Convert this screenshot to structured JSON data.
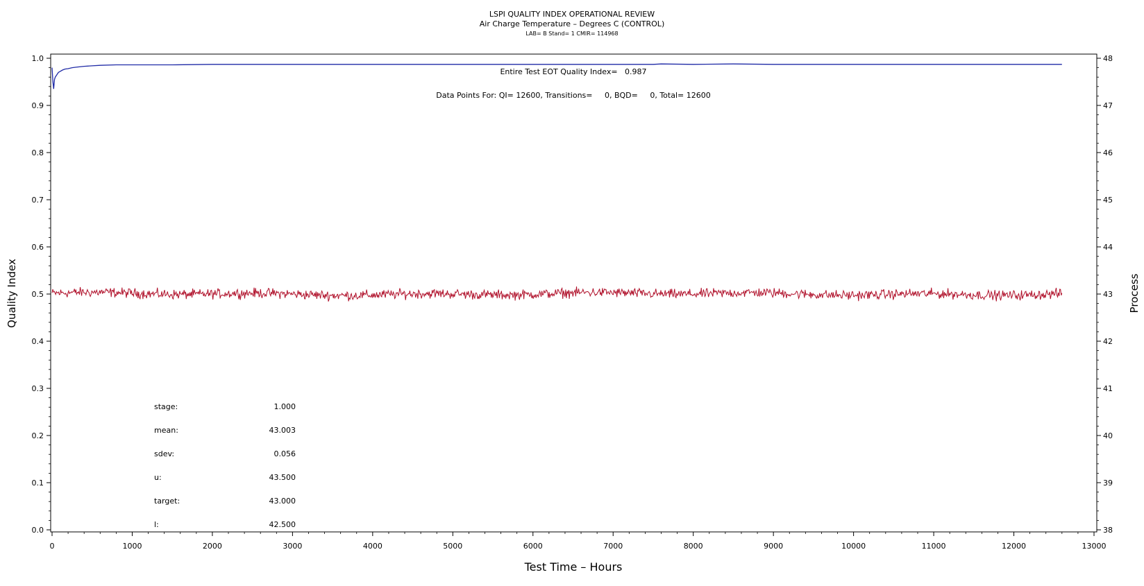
{
  "chart_data": {
    "type": "line",
    "title": "LSPI QUALITY INDEX OPERATIONAL REVIEW",
    "subtitle": "Air Charge Temperature – Degrees C (CONTROL)",
    "subtitle2": "LAB= B Stand= 1 CMIR= 114968",
    "xlabel": "Test Time – Hours",
    "ylabel_left": "Quality Index",
    "ylabel_right": "Process",
    "xlim": [
      0,
      13000
    ],
    "ylim_left": [
      0.0,
      1.0
    ],
    "ylim_right": [
      38,
      48
    ],
    "x_ticks": [
      "0",
      "1000",
      "2000",
      "3000",
      "4000",
      "5000",
      "6000",
      "7000",
      "8000",
      "9000",
      "10000",
      "11000",
      "12000",
      "13000"
    ],
    "y_ticks_left": [
      "0.0",
      "0.1",
      "0.2",
      "0.3",
      "0.4",
      "0.5",
      "0.6",
      "0.7",
      "0.8",
      "0.9",
      "1.0"
    ],
    "y_ticks_right": [
      "38",
      "39",
      "40",
      "41",
      "42",
      "43",
      "44",
      "45",
      "46",
      "47",
      "48"
    ],
    "grid": false,
    "annotations": {
      "eot": "Entire Test EOT Quality Index=   0.987",
      "datapoints": "Data Points For: QI= 12600, Transitions=     0, BQD=     0, Total= 12600"
    },
    "stats": [
      {
        "label": "stage:",
        "value": "1.000"
      },
      {
        "label": "mean:",
        "value": "43.003"
      },
      {
        "label": "sdev:",
        "value": "0.056"
      },
      {
        "label": "u:",
        "value": "43.500"
      },
      {
        "label": "target:",
        "value": "43.000"
      },
      {
        "label": "l:",
        "value": "42.500"
      }
    ],
    "series": [
      {
        "axis": "left",
        "color": "#1f2aa6",
        "x": [
          0,
          10,
          20,
          30,
          40,
          60,
          80,
          100,
          130,
          160,
          200,
          250,
          300,
          400,
          500,
          600,
          800,
          1000,
          1500,
          2000,
          2500,
          3000,
          4000,
          5000,
          6000,
          7000,
          7500,
          7600,
          8000,
          8500,
          9000,
          10000,
          11000,
          12000,
          12600
        ],
        "y": [
          0.98,
          0.95,
          0.935,
          0.955,
          0.96,
          0.965,
          0.97,
          0.972,
          0.975,
          0.977,
          0.978,
          0.98,
          0.981,
          0.983,
          0.984,
          0.985,
          0.986,
          0.986,
          0.986,
          0.987,
          0.987,
          0.987,
          0.987,
          0.987,
          0.987,
          0.987,
          0.987,
          0.988,
          0.987,
          0.988,
          0.987,
          0.987,
          0.987,
          0.987,
          0.987
        ]
      },
      {
        "axis": "right",
        "color": "#b0102a",
        "x_start": 0,
        "x_end": 12600,
        "points": 1400,
        "mean": 43.003,
        "sdev": 0.056
      }
    ]
  }
}
